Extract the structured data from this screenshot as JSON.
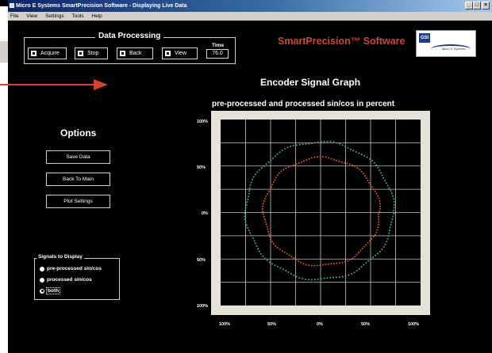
{
  "window": {
    "title": "Micro E Systems SmartPrecision Software - Displaying Live Data",
    "controls": [
      "_",
      "□",
      "×"
    ]
  },
  "menu": [
    "File",
    "View",
    "Settings",
    "Tools",
    "Help"
  ],
  "data_processing": {
    "title": "Data Processing",
    "buttons": [
      "Acquire",
      "Stop",
      "Back",
      "View"
    ],
    "time_label": "Time",
    "time_value": "76.0"
  },
  "brand": {
    "name": "SmartPrecision™ Software",
    "logo_text": "GSI",
    "logo_subtext": "Micro E Systems"
  },
  "options": {
    "title": "Options",
    "buttons": [
      "Save Data",
      "Back To Main",
      "Plot Settings"
    ]
  },
  "signals": {
    "title": "Signals to Display",
    "choices": [
      "pre-processed sin/cos",
      "processed sin/cos",
      "both"
    ],
    "selected_index": 2
  },
  "graph": {
    "title": "Encoder Signal Graph",
    "subtitle": "pre-processed and processed sin/cos in percent",
    "y_ticks": [
      "100%",
      "50%",
      "0%",
      "50%",
      "100%"
    ],
    "x_ticks": [
      "100%",
      "50%",
      "0%",
      "50%",
      "100%"
    ]
  },
  "chart_data": {
    "type": "scatter",
    "title": "Encoder Signal Graph",
    "subtitle": "pre-processed and processed sin/cos in percent",
    "xlim": [
      -100,
      100
    ],
    "ylim": [
      -100,
      100
    ],
    "x_ticks": [
      "100%",
      "50%",
      "0%",
      "50%",
      "100%"
    ],
    "y_ticks": [
      "100%",
      "50%",
      "0%",
      "50%",
      "100%"
    ],
    "grid": true,
    "series": [
      {
        "color": "#3fb07a",
        "center": [
          -1,
          2
        ],
        "radius": 74,
        "shape": "circle"
      },
      {
        "color": "#d6553b",
        "center": [
          1,
          1
        ],
        "radius": 58,
        "shape": "circle"
      }
    ]
  },
  "colors": {
    "background": "#000000",
    "accent": "#d8412f",
    "frame": "#e7e2d7",
    "grid": "#c9c4b8"
  }
}
